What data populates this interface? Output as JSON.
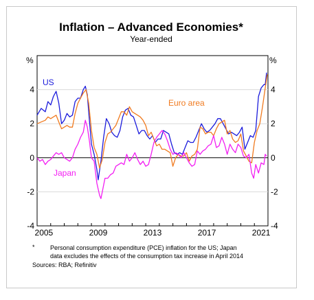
{
  "chart_data": {
    "type": "line",
    "title": "Inflation – Advanced Economies*",
    "subtitle": "Year-ended",
    "ylabel_left": "%",
    "ylabel_right": "%",
    "xlim": [
      2005,
      2022
    ],
    "ylim": [
      -4,
      6
    ],
    "y_ticks": [
      -4,
      -2,
      0,
      2,
      4
    ],
    "x_ticks": [
      "2005",
      "2009",
      "2013",
      "2017",
      "2021"
    ],
    "grid": true,
    "series": [
      {
        "name": "US",
        "color": "#1a1adb",
        "points": [
          [
            2005.0,
            2.5
          ],
          [
            2005.3,
            2.9
          ],
          [
            2005.6,
            2.7
          ],
          [
            2005.8,
            3.3
          ],
          [
            2006.0,
            3.1
          ],
          [
            2006.2,
            3.6
          ],
          [
            2006.4,
            3.9
          ],
          [
            2006.6,
            3.2
          ],
          [
            2006.8,
            2.0
          ],
          [
            2007.0,
            2.2
          ],
          [
            2007.2,
            2.6
          ],
          [
            2007.4,
            2.4
          ],
          [
            2007.6,
            2.5
          ],
          [
            2007.8,
            3.3
          ],
          [
            2008.0,
            3.5
          ],
          [
            2008.2,
            3.5
          ],
          [
            2008.4,
            4.0
          ],
          [
            2008.55,
            4.2
          ],
          [
            2008.7,
            3.7
          ],
          [
            2008.85,
            2.2
          ],
          [
            2009.0,
            0.8
          ],
          [
            2009.2,
            0.2
          ],
          [
            2009.4,
            -0.7
          ],
          [
            2009.5,
            -1.3
          ],
          [
            2009.7,
            -0.2
          ],
          [
            2009.9,
            1.2
          ],
          [
            2010.1,
            2.3
          ],
          [
            2010.3,
            2.0
          ],
          [
            2010.5,
            1.5
          ],
          [
            2010.7,
            1.3
          ],
          [
            2010.9,
            1.2
          ],
          [
            2011.1,
            1.6
          ],
          [
            2011.3,
            2.4
          ],
          [
            2011.5,
            2.8
          ],
          [
            2011.7,
            2.9
          ],
          [
            2011.9,
            2.5
          ],
          [
            2012.1,
            2.4
          ],
          [
            2012.3,
            1.9
          ],
          [
            2012.5,
            1.4
          ],
          [
            2012.7,
            1.6
          ],
          [
            2012.9,
            1.6
          ],
          [
            2013.1,
            1.3
          ],
          [
            2013.3,
            1.1
          ],
          [
            2013.5,
            1.3
          ],
          [
            2013.7,
            0.9
          ],
          [
            2013.9,
            1.1
          ],
          [
            2014.1,
            1.1
          ],
          [
            2014.3,
            1.6
          ],
          [
            2014.5,
            1.5
          ],
          [
            2014.7,
            1.4
          ],
          [
            2014.9,
            0.8
          ],
          [
            2015.1,
            0.3
          ],
          [
            2015.3,
            0.2
          ],
          [
            2015.5,
            0.3
          ],
          [
            2015.7,
            0.2
          ],
          [
            2015.9,
            0.6
          ],
          [
            2016.1,
            1.0
          ],
          [
            2016.3,
            0.9
          ],
          [
            2016.5,
            0.9
          ],
          [
            2016.7,
            1.2
          ],
          [
            2016.9,
            1.6
          ],
          [
            2017.1,
            2.0
          ],
          [
            2017.3,
            1.7
          ],
          [
            2017.5,
            1.5
          ],
          [
            2017.7,
            1.6
          ],
          [
            2017.9,
            1.8
          ],
          [
            2018.1,
            2.0
          ],
          [
            2018.3,
            2.3
          ],
          [
            2018.5,
            2.3
          ],
          [
            2018.7,
            2.0
          ],
          [
            2018.9,
            1.7
          ],
          [
            2019.1,
            1.4
          ],
          [
            2019.3,
            1.5
          ],
          [
            2019.5,
            1.4
          ],
          [
            2019.7,
            1.3
          ],
          [
            2019.9,
            1.5
          ],
          [
            2020.1,
            1.8
          ],
          [
            2020.3,
            0.5
          ],
          [
            2020.5,
            0.9
          ],
          [
            2020.7,
            1.3
          ],
          [
            2020.9,
            1.2
          ],
          [
            2021.1,
            1.6
          ],
          [
            2021.3,
            3.6
          ],
          [
            2021.5,
            4.1
          ],
          [
            2021.7,
            4.3
          ],
          [
            2021.8,
            4.3
          ],
          [
            2021.9,
            5.0
          ]
        ]
      },
      {
        "name": "Euro area",
        "color": "#f07a1f",
        "points": [
          [
            2005.0,
            2.0
          ],
          [
            2005.3,
            2.1
          ],
          [
            2005.6,
            2.2
          ],
          [
            2005.8,
            2.4
          ],
          [
            2006.0,
            2.3
          ],
          [
            2006.2,
            2.4
          ],
          [
            2006.4,
            2.5
          ],
          [
            2006.6,
            2.1
          ],
          [
            2006.8,
            1.7
          ],
          [
            2007.0,
            1.8
          ],
          [
            2007.2,
            1.9
          ],
          [
            2007.4,
            1.8
          ],
          [
            2007.6,
            1.8
          ],
          [
            2007.8,
            2.6
          ],
          [
            2008.0,
            3.2
          ],
          [
            2008.2,
            3.5
          ],
          [
            2008.4,
            3.8
          ],
          [
            2008.6,
            4.0
          ],
          [
            2008.8,
            3.2
          ],
          [
            2009.0,
            1.6
          ],
          [
            2009.2,
            0.6
          ],
          [
            2009.4,
            0.2
          ],
          [
            2009.6,
            -0.6
          ],
          [
            2009.8,
            -0.1
          ],
          [
            2010.0,
            0.9
          ],
          [
            2010.2,
            1.4
          ],
          [
            2010.4,
            1.5
          ],
          [
            2010.6,
            1.7
          ],
          [
            2010.8,
            1.9
          ],
          [
            2011.0,
            2.3
          ],
          [
            2011.2,
            2.7
          ],
          [
            2011.4,
            2.7
          ],
          [
            2011.6,
            2.5
          ],
          [
            2011.8,
            3.0
          ],
          [
            2012.0,
            2.7
          ],
          [
            2012.2,
            2.6
          ],
          [
            2012.4,
            2.5
          ],
          [
            2012.6,
            2.4
          ],
          [
            2012.8,
            2.2
          ],
          [
            2013.0,
            1.9
          ],
          [
            2013.2,
            1.3
          ],
          [
            2013.4,
            1.5
          ],
          [
            2013.6,
            1.1
          ],
          [
            2013.8,
            0.7
          ],
          [
            2014.0,
            0.8
          ],
          [
            2014.2,
            0.5
          ],
          [
            2014.4,
            0.5
          ],
          [
            2014.6,
            0.4
          ],
          [
            2014.8,
            0.3
          ],
          [
            2015.0,
            -0.5
          ],
          [
            2015.2,
            0.0
          ],
          [
            2015.4,
            0.2
          ],
          [
            2015.6,
            0.1
          ],
          [
            2015.8,
            0.1
          ],
          [
            2016.0,
            0.3
          ],
          [
            2016.2,
            -0.2
          ],
          [
            2016.4,
            0.1
          ],
          [
            2016.6,
            0.2
          ],
          [
            2016.8,
            0.5
          ],
          [
            2017.0,
            1.8
          ],
          [
            2017.2,
            1.7
          ],
          [
            2017.4,
            1.4
          ],
          [
            2017.6,
            1.5
          ],
          [
            2017.8,
            1.5
          ],
          [
            2018.0,
            1.3
          ],
          [
            2018.2,
            1.7
          ],
          [
            2018.4,
            2.0
          ],
          [
            2018.6,
            2.1
          ],
          [
            2018.8,
            2.2
          ],
          [
            2019.0,
            1.4
          ],
          [
            2019.2,
            1.6
          ],
          [
            2019.4,
            1.1
          ],
          [
            2019.6,
            0.9
          ],
          [
            2019.8,
            1.0
          ],
          [
            2020.0,
            1.4
          ],
          [
            2020.2,
            0.4
          ],
          [
            2020.4,
            0.1
          ],
          [
            2020.6,
            -0.2
          ],
          [
            2020.8,
            -0.3
          ],
          [
            2021.0,
            0.9
          ],
          [
            2021.2,
            1.6
          ],
          [
            2021.4,
            2.0
          ],
          [
            2021.6,
            3.0
          ],
          [
            2021.8,
            4.1
          ],
          [
            2021.95,
            4.9
          ]
        ]
      },
      {
        "name": "Japan",
        "color": "#f21ef2",
        "points": [
          [
            2005.0,
            0.0
          ],
          [
            2005.2,
            -0.2
          ],
          [
            2005.4,
            -0.1
          ],
          [
            2005.6,
            -0.4
          ],
          [
            2005.8,
            -0.2
          ],
          [
            2006.0,
            -0.1
          ],
          [
            2006.2,
            0.1
          ],
          [
            2006.4,
            0.3
          ],
          [
            2006.6,
            0.2
          ],
          [
            2006.8,
            0.3
          ],
          [
            2007.0,
            0.0
          ],
          [
            2007.2,
            -0.1
          ],
          [
            2007.4,
            -0.2
          ],
          [
            2007.6,
            0.0
          ],
          [
            2007.8,
            0.5
          ],
          [
            2008.0,
            0.8
          ],
          [
            2008.2,
            1.2
          ],
          [
            2008.4,
            1.5
          ],
          [
            2008.55,
            2.2
          ],
          [
            2008.7,
            1.8
          ],
          [
            2008.85,
            1.0
          ],
          [
            2009.0,
            0.0
          ],
          [
            2009.2,
            -0.2
          ],
          [
            2009.4,
            -1.5
          ],
          [
            2009.6,
            -2.2
          ],
          [
            2009.7,
            -2.4
          ],
          [
            2009.8,
            -2.0
          ],
          [
            2010.0,
            -1.2
          ],
          [
            2010.2,
            -1.2
          ],
          [
            2010.4,
            -1.0
          ],
          [
            2010.6,
            -0.9
          ],
          [
            2010.8,
            -0.5
          ],
          [
            2011.0,
            -0.4
          ],
          [
            2011.2,
            -0.3
          ],
          [
            2011.4,
            -0.4
          ],
          [
            2011.6,
            0.2
          ],
          [
            2011.8,
            -0.2
          ],
          [
            2012.0,
            0.0
          ],
          [
            2012.2,
            0.3
          ],
          [
            2012.4,
            -0.1
          ],
          [
            2012.6,
            -0.4
          ],
          [
            2012.8,
            -0.2
          ],
          [
            2013.0,
            -0.5
          ],
          [
            2013.2,
            -0.4
          ],
          [
            2013.4,
            0.2
          ],
          [
            2013.6,
            0.9
          ],
          [
            2013.8,
            1.2
          ],
          [
            2014.0,
            1.4
          ],
          [
            2014.2,
            1.6
          ],
          [
            2014.4,
            1.4
          ],
          [
            2014.6,
            1.0
          ],
          [
            2014.8,
            0.5
          ],
          [
            2015.0,
            0.2
          ],
          [
            2015.2,
            0.3
          ],
          [
            2015.4,
            0.2
          ],
          [
            2015.6,
            0.0
          ],
          [
            2015.8,
            0.3
          ],
          [
            2016.0,
            0.0
          ],
          [
            2016.2,
            -0.3
          ],
          [
            2016.4,
            -0.5
          ],
          [
            2016.6,
            -0.4
          ],
          [
            2016.8,
            0.4
          ],
          [
            2017.0,
            0.2
          ],
          [
            2017.2,
            0.4
          ],
          [
            2017.4,
            0.5
          ],
          [
            2017.6,
            0.7
          ],
          [
            2017.8,
            0.8
          ],
          [
            2018.0,
            1.3
          ],
          [
            2018.2,
            0.6
          ],
          [
            2018.4,
            0.7
          ],
          [
            2018.6,
            1.2
          ],
          [
            2018.8,
            0.8
          ],
          [
            2019.0,
            0.2
          ],
          [
            2019.2,
            0.8
          ],
          [
            2019.4,
            0.5
          ],
          [
            2019.6,
            0.3
          ],
          [
            2019.8,
            0.8
          ],
          [
            2020.0,
            0.6
          ],
          [
            2020.2,
            0.1
          ],
          [
            2020.4,
            0.0
          ],
          [
            2020.6,
            0.2
          ],
          [
            2020.8,
            -0.9
          ],
          [
            2020.95,
            -1.2
          ],
          [
            2021.1,
            -0.4
          ],
          [
            2021.3,
            -0.9
          ],
          [
            2021.5,
            -0.3
          ],
          [
            2021.7,
            -0.4
          ],
          [
            2021.8,
            0.2
          ],
          [
            2021.9,
            0.1
          ]
        ]
      }
    ],
    "labels": {
      "us": "US",
      "euro": "Euro area",
      "japan": "Japan"
    }
  },
  "notes": {
    "asterisk": "*",
    "note_line1": "Personal consumption expenditure (PCE) inflation for the US; Japan",
    "note_line2": "data excludes the effects of the consumption tax increase in April 2014",
    "sources": "Sources: RBA; Refinitiv"
  }
}
